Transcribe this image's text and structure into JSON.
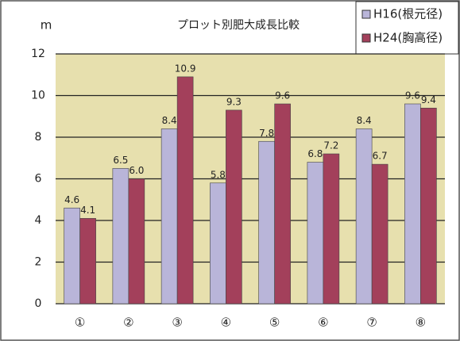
{
  "chart_data": {
    "type": "bar",
    "title": "プロット別肥大成長比較",
    "y_label": "m",
    "categories": [
      "①",
      "②",
      "③",
      "④",
      "⑤",
      "⑥",
      "⑦",
      "⑧"
    ],
    "series": [
      {
        "name": "H16(根元径)",
        "color": "#b9b5d9",
        "values": [
          4.6,
          6.5,
          8.4,
          5.8,
          7.8,
          6.8,
          8.4,
          9.6
        ],
        "value_labels": [
          "4.6",
          "6.5",
          "8.4",
          "5.8",
          "7.8",
          "6.8",
          "8.4",
          "9.6"
        ]
      },
      {
        "name": "H24(胸高径)",
        "color": "#a3405b",
        "values": [
          4.1,
          6.0,
          10.9,
          9.3,
          9.6,
          7.2,
          6.7,
          9.4
        ],
        "value_labels": [
          "4.1",
          "6.0",
          "10.9",
          "9.3",
          "9.6",
          "7.2",
          "6.7",
          "9.4"
        ]
      }
    ],
    "ylim": [
      0,
      12
    ],
    "yticks": [
      0,
      2,
      4,
      6,
      8,
      10,
      12
    ],
    "grid": true,
    "legend": "top-right"
  }
}
